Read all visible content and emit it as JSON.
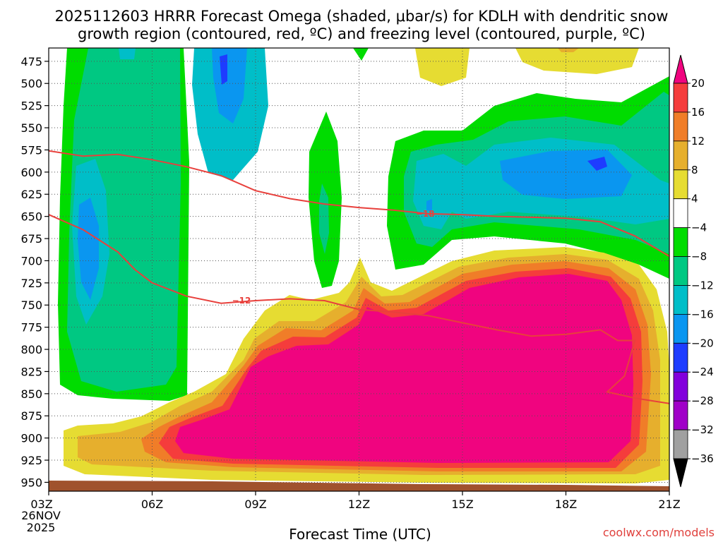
{
  "chart_data": {
    "type": "heatmap",
    "title_line1": "2025112603 HRRR Forecast Omega (shaded, μbar/s) for KDLH with dendritic snow",
    "title_line2": "growth region (contoured, red, ºC) and freezing level (contoured, purple, ºC)",
    "xlabel": "Forecast Time (UTC)",
    "x_ticks": [
      "03Z",
      "06Z",
      "09Z",
      "12Z",
      "15Z",
      "18Z",
      "21Z"
    ],
    "x_hours": [
      3,
      6,
      9,
      12,
      15,
      18,
      21
    ],
    "x_range": [
      3,
      21
    ],
    "date_label_day": "26NOV",
    "date_label_year": "2025",
    "y_ticks": [
      475,
      500,
      525,
      550,
      575,
      600,
      625,
      650,
      675,
      700,
      725,
      750,
      775,
      800,
      825,
      850,
      875,
      900,
      925,
      950
    ],
    "y_range": [
      460,
      960
    ],
    "y_units": "hPa",
    "colorbar_levels": [
      20,
      16,
      12,
      8,
      4,
      -4,
      -8,
      -12,
      -16,
      -20,
      -24,
      -28,
      -32,
      -36
    ],
    "colorbar_colors": [
      "#f0047f",
      "#f53c3c",
      "#f07d28",
      "#e6af2d",
      "#e6dc32",
      "#ffffff",
      "#00dc00",
      "#00c882",
      "#00bec8",
      "#0a96f0",
      "#1e3cff",
      "#8200dc",
      "#a000c8",
      "#a0a0a0",
      "#000000"
    ],
    "contours": [
      {
        "label": "-18",
        "color": "#e8403c",
        "points": [
          [
            3,
            576
          ],
          [
            4,
            582
          ],
          [
            5,
            580
          ],
          [
            6,
            586
          ],
          [
            7,
            594
          ],
          [
            8,
            604
          ],
          [
            9,
            621
          ],
          [
            10,
            630
          ],
          [
            11,
            636
          ],
          [
            12,
            640
          ],
          [
            13,
            643
          ],
          [
            14,
            647
          ],
          [
            15,
            648
          ],
          [
            16,
            650
          ],
          [
            17,
            651
          ],
          [
            18,
            652
          ],
          [
            19,
            656
          ],
          [
            20,
            672
          ],
          [
            21,
            695
          ]
        ]
      },
      {
        "label": "-12",
        "color": "#e8403c",
        "points": [
          [
            3,
            648
          ],
          [
            4,
            665
          ],
          [
            5,
            690
          ],
          [
            5.5,
            710
          ],
          [
            6,
            725
          ],
          [
            7,
            740
          ],
          [
            8,
            748
          ],
          [
            9,
            745
          ],
          [
            10,
            743
          ],
          [
            11,
            745
          ],
          [
            12,
            755
          ],
          [
            13,
            758
          ],
          [
            14,
            762
          ],
          [
            15,
            770
          ],
          [
            16,
            778
          ],
          [
            17,
            785
          ],
          [
            18,
            783
          ],
          [
            19,
            778
          ],
          [
            19.5,
            790
          ],
          [
            20,
            790
          ],
          [
            19.7,
            830
          ],
          [
            19.2,
            848
          ],
          [
            20,
            855
          ],
          [
            21,
            861
          ]
        ]
      }
    ],
    "terrain_color": "#a0522d",
    "credit": "coolwx.com/models"
  }
}
